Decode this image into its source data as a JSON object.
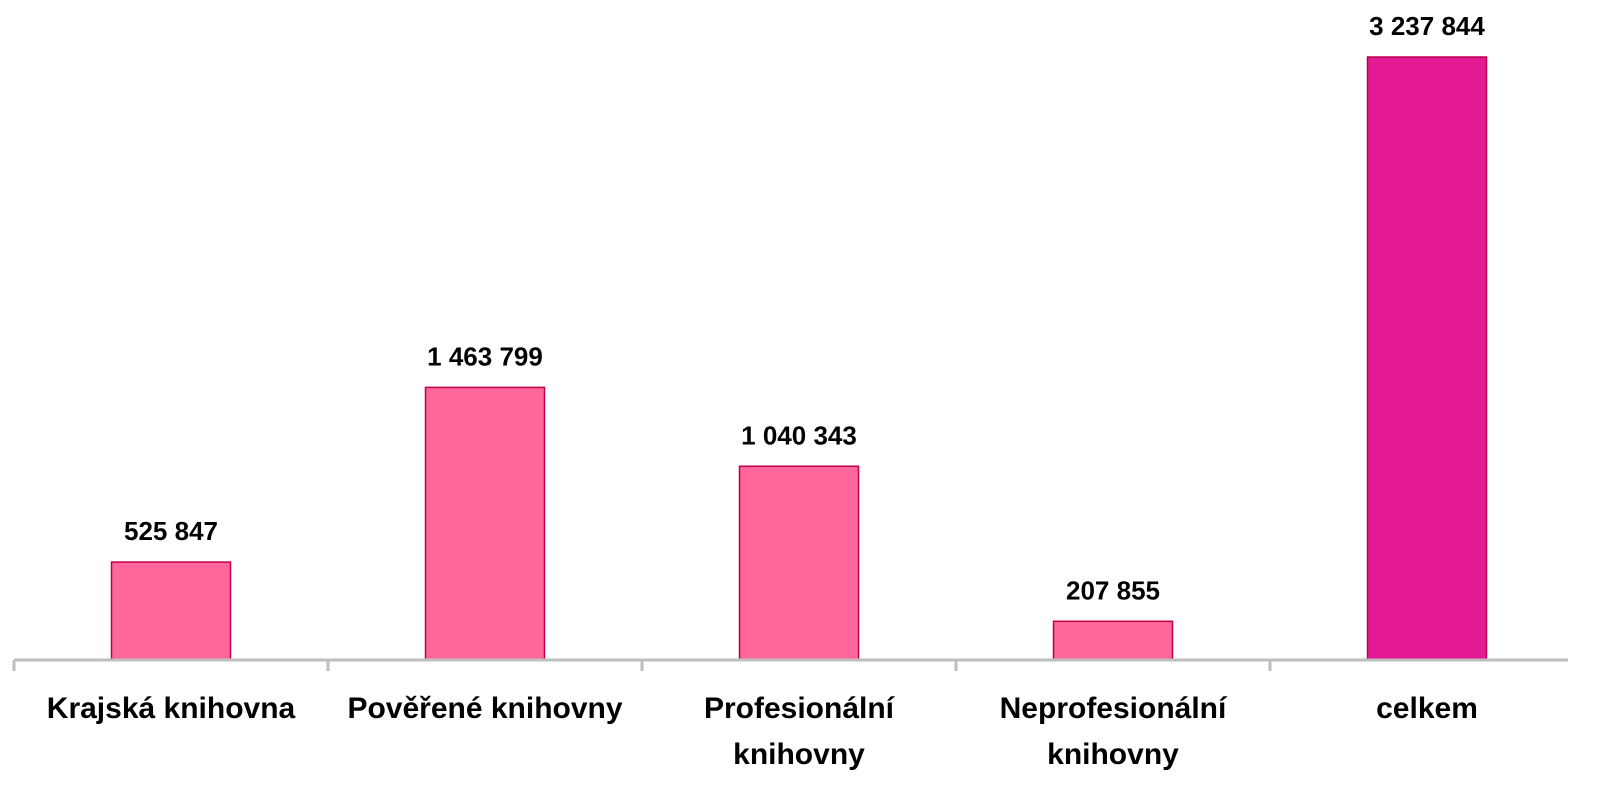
{
  "chart_data": {
    "type": "bar",
    "categories": [
      "Krajská knihovna",
      "Pověřené knihovny",
      "Profesionální knihovny",
      "Neprofesionální knihovny",
      "celkem"
    ],
    "values": [
      525847,
      1463799,
      1040343,
      207855,
      3237844
    ],
    "value_labels": [
      "525 847",
      "1 463 799",
      "1 040 343",
      "207 855",
      "3 237 844"
    ],
    "colors": [
      "#ff6699",
      "#ff6699",
      "#ff6699",
      "#ff6699",
      "#e31a93"
    ]
  }
}
